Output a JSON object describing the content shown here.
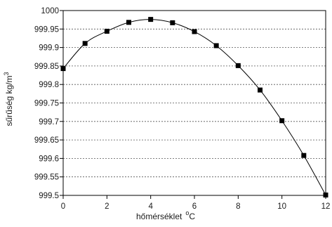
{
  "chart_data": {
    "type": "line",
    "title": "",
    "xlabel": "hőmérséklet",
    "xlabel_unit": "C",
    "xlabel_unit_prefix": "o",
    "ylabel": "sűrűség kg/m",
    "ylabel_unit_exp": "3",
    "xlim": [
      0,
      12
    ],
    "ylim": [
      999.5,
      1000
    ],
    "x_ticks": [
      "0",
      "2",
      "4",
      "6",
      "8",
      "10",
      "12"
    ],
    "y_ticks": [
      "999.5",
      "999.55",
      "999.6",
      "999.65",
      "999.7",
      "999.75",
      "999.8",
      "999.85",
      "999.9",
      "999.95",
      "1000"
    ],
    "grid": "horizontal dashed",
    "marker": "square",
    "series": [
      {
        "x": [
          0,
          1,
          2,
          3,
          4,
          5,
          6,
          7,
          8,
          9,
          10,
          11,
          12
        ],
        "y": [
          999.843,
          999.911,
          999.944,
          999.968,
          999.976,
          999.967,
          999.943,
          999.905,
          999.851,
          999.785,
          999.702,
          999.608,
          999.501
        ],
        "color": "#000000"
      }
    ]
  }
}
